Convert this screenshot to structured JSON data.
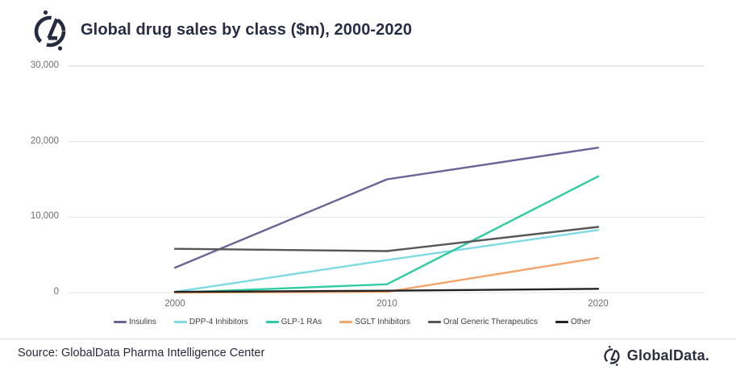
{
  "header": {
    "title": "Global drug sales by class ($m), 2000-2020"
  },
  "chart_data": {
    "type": "line",
    "title": "Global drug sales by class ($m), 2000-2020",
    "categories": [
      "2000",
      "2010",
      "2020"
    ],
    "series": [
      {
        "name": "Insulins",
        "color": "#6c6399",
        "values": [
          3300,
          15000,
          19200
        ]
      },
      {
        "name": "DPP-4 Inhibitors",
        "color": "#7ed9e2",
        "values": [
          100,
          4300,
          8300
        ]
      },
      {
        "name": "GLP-1 RAs",
        "color": "#2fcca3",
        "values": [
          0,
          1100,
          15400
        ]
      },
      {
        "name": "SGLT Inhibitors",
        "color": "#f2a56b",
        "values": [
          0,
          100,
          4600
        ]
      },
      {
        "name": "Oral Generic Therapeutics",
        "color": "#575757",
        "values": [
          5800,
          5500,
          8700
        ]
      },
      {
        "name": "Other",
        "color": "#232323",
        "values": [
          100,
          250,
          500
        ]
      }
    ],
    "ylim": [
      0,
      30000
    ],
    "ytick_values": [
      30000,
      20000,
      10000,
      0
    ],
    "ytick_labels": [
      "30,000",
      "20,000",
      "10,000",
      "0"
    ],
    "grid": "horizontal",
    "legend_position": "bottom",
    "colors": {
      "gridline_top": "#d3d3d3",
      "gridline": "#e3e3e3",
      "tick_text": "#6f6f6f",
      "title_text": "#282c44"
    }
  },
  "footer": {
    "source": "Source: GlobalData Pharma Intelligence Center",
    "brand": "GlobalData."
  }
}
